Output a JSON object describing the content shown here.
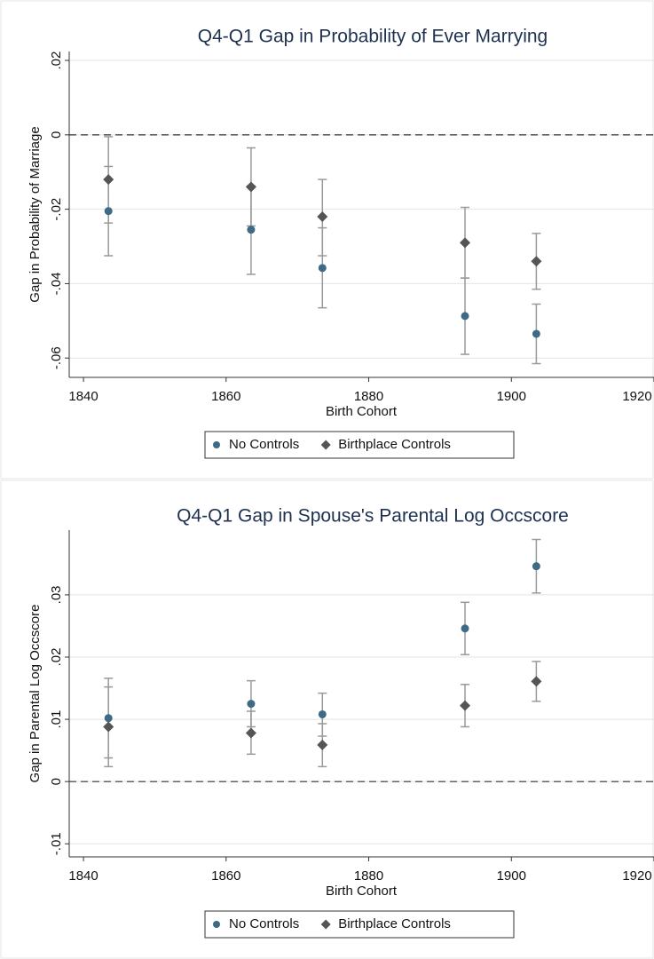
{
  "chart_data": [
    {
      "type": "scatter",
      "title": "Q4-Q1 Gap in Probability of Ever Marrying",
      "x_label": "Birth Cohort",
      "y_label": "Gap in Probability of Marriage",
      "x": [
        1843.5,
        1863.5,
        1873.5,
        1893.5,
        1903.5
      ],
      "series": [
        {
          "name": "No Controls",
          "color": "#3e6a85",
          "marker": "circle",
          "values": [
            -0.0205,
            -0.0255,
            -0.0358,
            -0.0487,
            -0.0535
          ],
          "lower": [
            -0.0325,
            -0.0375,
            -0.0465,
            -0.059,
            -0.0615
          ],
          "upper": [
            -0.0085,
            -0.0137,
            -0.025,
            -0.0385,
            -0.0455
          ]
        },
        {
          "name": "Birthplace Controls",
          "color": "#555555",
          "marker": "diamond",
          "values": [
            -0.012,
            -0.014,
            -0.022,
            -0.029,
            -0.034
          ],
          "lower": [
            -0.0237,
            -0.0245,
            -0.0325,
            -0.0385,
            -0.0415
          ],
          "upper": [
            -0.0005,
            -0.0035,
            -0.012,
            -0.0195,
            -0.0265
          ]
        }
      ],
      "xlim": [
        1838,
        1920
      ],
      "xticks": [
        1840,
        1860,
        1880,
        1900,
        1920
      ],
      "ylim": [
        -0.0652,
        0.0224
      ],
      "yticks": [
        {
          "value": 0.02,
          "label": ".02"
        },
        0,
        {
          "value": -0.02,
          "label": "-.02"
        },
        {
          "value": -0.04,
          "label": "-.04"
        },
        {
          "value": -0.06,
          "label": "-.06"
        }
      ],
      "yline": 0,
      "grid": true,
      "errorbar_color": "#999999"
    },
    {
      "type": "scatter",
      "title": "Q4-Q1 Gap in Spouse's Parental Log Occscore",
      "x_label": "Birth Cohort",
      "y_label": "Gap in Parental Log Occscore",
      "x": [
        1843.5,
        1863.5,
        1873.5,
        1893.5,
        1903.5
      ],
      "series": [
        {
          "name": "No Controls",
          "color": "#3e6a85",
          "marker": "circle",
          "values": [
            0.0102,
            0.0125,
            0.0108,
            0.0246,
            0.0346
          ],
          "lower": [
            0.0038,
            0.0088,
            0.0073,
            0.0204,
            0.0303
          ],
          "upper": [
            0.0166,
            0.0162,
            0.0142,
            0.0288,
            0.0389
          ]
        },
        {
          "name": "Birthplace Controls",
          "color": "#555555",
          "marker": "diamond",
          "values": [
            0.0088,
            0.0078,
            0.0059,
            0.0122,
            0.0161
          ],
          "lower": [
            0.0024,
            0.0044,
            0.0024,
            0.0088,
            0.0129
          ],
          "upper": [
            0.0152,
            0.0113,
            0.0093,
            0.0156,
            0.0193
          ]
        }
      ],
      "xlim": [
        1838,
        1920
      ],
      "xticks": [
        1840,
        1860,
        1880,
        1900,
        1920
      ],
      "ylim": [
        -0.0121,
        0.0404
      ],
      "yticks": [
        {
          "value": -0.01,
          "label": "-.01"
        },
        0,
        {
          "value": 0.01,
          "label": ".01"
        },
        {
          "value": 0.02,
          "label": ".02"
        },
        {
          "value": 0.03,
          "label": ".03"
        }
      ],
      "yline": 0,
      "grid": true,
      "errorbar_color": "#999999"
    }
  ]
}
